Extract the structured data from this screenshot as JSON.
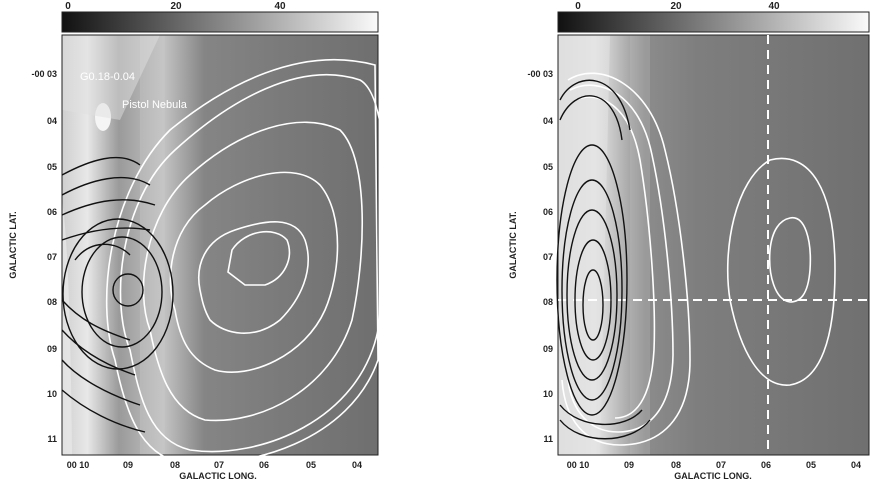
{
  "colorbar": {
    "ticks": [
      "0",
      "20",
      "40"
    ]
  },
  "panels": [
    {
      "id": "left",
      "ylabel": "GALACTIC LAT.",
      "xlabel": "GALACTIC LONG.",
      "ytick_labels": [
        "-00 03",
        "04",
        "05",
        "06",
        "07",
        "08",
        "09",
        "10",
        "11"
      ],
      "xtick_labels": [
        "00 10",
        "09",
        "08",
        "07",
        "06",
        "05",
        "04"
      ],
      "annotations": [
        "G0.18-0.04",
        "Pistol Nebula"
      ]
    },
    {
      "id": "right",
      "ylabel": "GALACTIC LAT.",
      "xlabel": "GALACTIC LONG.",
      "ytick_labels": [
        "-00 03",
        "04",
        "05",
        "06",
        "07",
        "08",
        "09",
        "10",
        "11"
      ],
      "xtick_labels": [
        "00 10",
        "09",
        "08",
        "07",
        "06",
        "05",
        "04"
      ],
      "annotations": []
    }
  ]
}
